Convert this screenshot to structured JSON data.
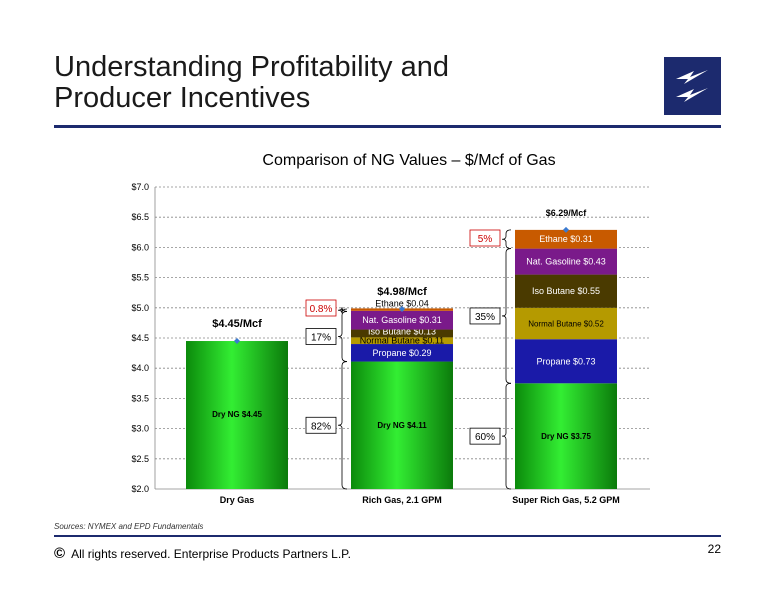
{
  "slide": {
    "title_line1": "Understanding Profitability and",
    "title_line2": "Producer Incentives",
    "source": "Sources:  NYMEX and EPD Fundamentals",
    "copyright_symbol": "©",
    "footer": "All rights reserved. Enterprise Products Partners L.P.",
    "page_number": "22",
    "brand_color": "#1c2a6e"
  },
  "chart_data": {
    "type": "bar",
    "stacked": true,
    "title": "Comparison of NG Values – $/Mcf of Gas",
    "ylim": [
      2.0,
      7.0
    ],
    "yticks": [
      2.0,
      2.5,
      3.0,
      3.5,
      4.0,
      4.5,
      5.0,
      5.5,
      6.0,
      6.5,
      7.0
    ],
    "ytick_labels": [
      "$2.0",
      "$2.5",
      "$3.0",
      "$3.5",
      "$4.0",
      "$4.5",
      "$5.0",
      "$5.5",
      "$6.0",
      "$6.5",
      "$7.0"
    ],
    "grid": true,
    "categories": [
      "Dry Gas",
      "Rich Gas, 2.1 GPM",
      "Super Rich Gas, 5.2 GPM"
    ],
    "totals": [
      4.45,
      4.98,
      6.29
    ],
    "total_labels": [
      "$4.45/Mcf",
      "$4.98/Mcf",
      "$6.29/Mcf"
    ],
    "stacks": [
      [
        {
          "label": "Dry NG $4.45",
          "value": 4.45,
          "color": "#22cc22"
        }
      ],
      [
        {
          "label": "Dry NG $4.11",
          "value": 4.11,
          "color": "#22cc22"
        },
        {
          "label": "Propane $0.29",
          "value": 0.29,
          "color": "#1a1aa8"
        },
        {
          "label": "Normal Butane $0.11",
          "value": 0.11,
          "color": "#b59a00"
        },
        {
          "label": "Iso Butane $0.13",
          "value": 0.13,
          "color": "#4a3a00"
        },
        {
          "label": "Nat. Gasoline $0.31",
          "value": 0.31,
          "color": "#7a1a8a"
        },
        {
          "label": "Ethane $0.04",
          "value": 0.04,
          "color": "#c85a00"
        }
      ],
      [
        {
          "label": "Dry NG $3.75",
          "value": 3.75,
          "color": "#22cc22"
        },
        {
          "label": "Propane $0.73",
          "value": 0.73,
          "color": "#1a1aa8"
        },
        {
          "label": "Normal Butane $0.52",
          "value": 0.52,
          "color": "#b59a00"
        },
        {
          "label": "Iso Butane $0.55",
          "value": 0.55,
          "color": "#4a3a00"
        },
        {
          "label": "Nat. Gasoline $0.43",
          "value": 0.43,
          "color": "#7a1a8a"
        },
        {
          "label": "Ethane $0.31",
          "value": 0.31,
          "color": "#c85a00"
        }
      ]
    ],
    "annotations": [
      {
        "bar": 1,
        "text": "82%",
        "from": 2.0,
        "to": 4.11,
        "color": "#000000"
      },
      {
        "bar": 1,
        "text": "17%",
        "from": 4.11,
        "to": 4.94,
        "color": "#000000"
      },
      {
        "bar": 1,
        "text": "0.8%",
        "from": 4.94,
        "to": 4.98,
        "color": "#cc0000"
      },
      {
        "bar": 2,
        "text": "60%",
        "from": 2.0,
        "to": 3.75,
        "color": "#000000"
      },
      {
        "bar": 2,
        "text": "35%",
        "from": 3.75,
        "to": 5.98,
        "color": "#000000"
      },
      {
        "bar": 2,
        "text": "5%",
        "from": 5.98,
        "to": 6.29,
        "color": "#cc0000"
      }
    ]
  }
}
